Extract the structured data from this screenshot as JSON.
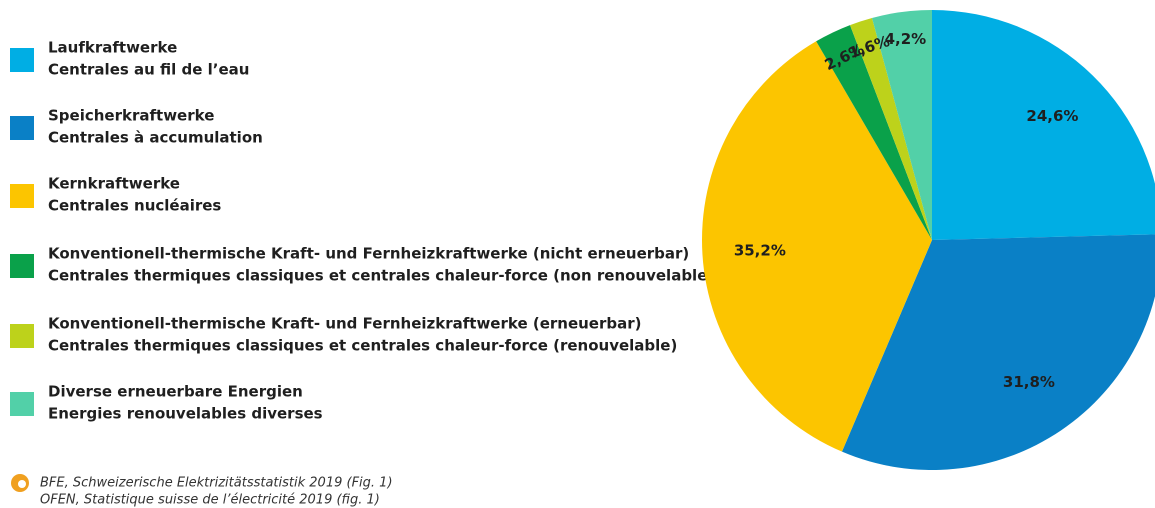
{
  "chart_data": {
    "type": "pie",
    "categories": [
      "Laufkraftwerke",
      "Speicherkraftwerke",
      "Kernkraftwerke",
      "Konventionell-thermische Kraft- und Fernheizkraftwerke (nicht erneuerbar)",
      "Konventionell-thermische Kraft- und Fernheizkraftwerke (erneuerbar)",
      "Diverse erneuerbare Energien"
    ],
    "categories_fr": [
      "Centrales au fil de l’eau",
      "Centrales à accumulation",
      "Centrales nucléaires",
      "Centrales thermiques classiques et centrales chaleur-force (non renouvelable)",
      "Centrales thermiques classiques et centrales chaleur-force (renouvelable)",
      "Energies renouvelables diverses"
    ],
    "values": [
      24.6,
      31.8,
      35.2,
      2.6,
      1.6,
      4.2
    ],
    "value_labels": [
      "24,6%",
      "31,8%",
      "35,2%",
      "2,6%",
      "1,6%",
      "4,2%"
    ],
    "colors": [
      "#00aee4",
      "#0a80c6",
      "#fcc500",
      "#0aa14a",
      "#bdd21b",
      "#52d0a8"
    ],
    "source": [
      "BFE, Schweizerische Elektrizitätsstatistik 2019 (Fig. 1)",
      "OFEN, Statistique suisse de l’électricité 2019 (fig. 1)"
    ]
  }
}
